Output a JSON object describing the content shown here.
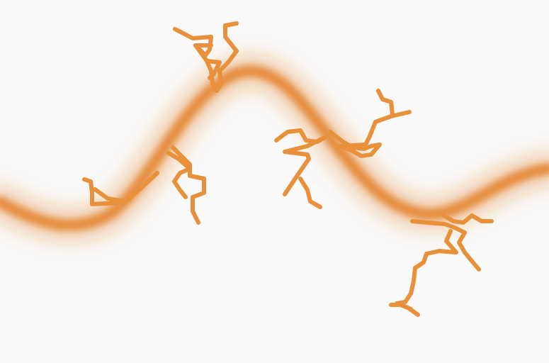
{
  "colors": {
    "background": "#fbfbfb",
    "glow": "#e07a22",
    "stroke": "#e8913a"
  }
}
